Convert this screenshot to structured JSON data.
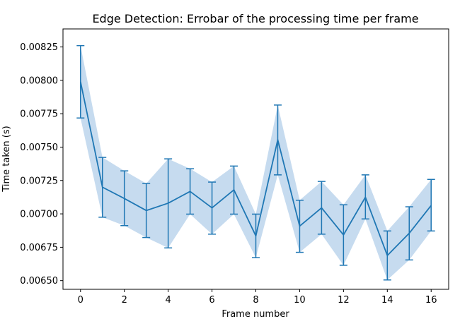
{
  "chart_data": {
    "type": "line",
    "title": "Edge Detection: Errobar of the processing time per frame",
    "xlabel": "Frame number",
    "ylabel": "Time taken (s)",
    "xlim": [
      -0.8,
      16.8
    ],
    "ylim": [
      0.006435,
      0.008385
    ],
    "xticks": [
      0,
      2,
      4,
      6,
      8,
      10,
      12,
      14,
      16
    ],
    "yticks": [
      0.0065,
      0.00675,
      0.007,
      0.00725,
      0.0075,
      0.00775,
      0.008,
      0.00825
    ],
    "ytick_labels": [
      "0.00650",
      "0.00675",
      "0.00700",
      "0.00725",
      "0.00750",
      "0.00775",
      "0.00800",
      "0.00825"
    ],
    "grid": false,
    "legend": "none",
    "series": [
      {
        "x": [
          0,
          1,
          2,
          3,
          4,
          5,
          6,
          7,
          8,
          9,
          10,
          11,
          12,
          13,
          14,
          15,
          16
        ],
        "values": [
          0.00799,
          0.0072,
          0.007115,
          0.007025,
          0.00708,
          0.007168,
          0.007045,
          0.00718,
          0.006835,
          0.007555,
          0.006908,
          0.007045,
          0.006842,
          0.007125,
          0.006688,
          0.006855,
          0.007063
        ],
        "lower": [
          0.007718,
          0.006975,
          0.006912,
          0.006823,
          0.006745,
          0.006998,
          0.006848,
          0.006998,
          0.006672,
          0.007292,
          0.006712,
          0.006848,
          0.006615,
          0.006962,
          0.006505,
          0.006655,
          0.006872
        ],
        "upper": [
          0.00826,
          0.007423,
          0.007322,
          0.007228,
          0.007412,
          0.007338,
          0.007238,
          0.007358,
          0.006998,
          0.007815,
          0.007102,
          0.007243,
          0.007068,
          0.007292,
          0.006872,
          0.007053,
          0.007258
        ]
      }
    ],
    "colors": {
      "line": "#1f77b4",
      "band": "#c6dbef",
      "axes": "#000000"
    }
  }
}
